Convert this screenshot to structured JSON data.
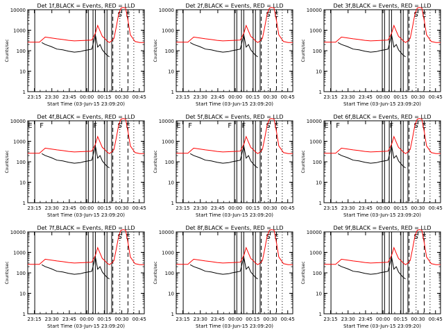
{
  "figure": {
    "panels": [
      {
        "title": "Det 1f,BLACK = Events, RED = LLD",
        "ylabel": "Counts/sec",
        "x_tick_labels": [
          "23:15",
          "23:30",
          "23:45",
          "00:00",
          "00:15",
          "00:30",
          "00:45"
        ],
        "y_tick_labels": [
          "1",
          "10",
          "100",
          "1000",
          "10000"
        ],
        "xlabel": "Start Time (03-Jun-15 23:09:20)",
        "marker_letters": [
          "S",
          "E"
        ]
      },
      {
        "title": "Det 2f,BLACK = Events, RED = LLD",
        "ylabel": "Counts/sec",
        "x_tick_labels": [
          "23:15",
          "23:30",
          "23:45",
          "00:00",
          "00:15",
          "00:30",
          "00:45"
        ],
        "y_tick_labels": [
          "1",
          "10",
          "100",
          "1000",
          "10000"
        ],
        "xlabel": "Start Time (03-Jun-15 23:09:20)",
        "marker_letters": [
          "S",
          "E"
        ]
      },
      {
        "title": "Det 3f,BLACK = Events, RED = LLD",
        "ylabel": "Counts/sec",
        "x_tick_labels": [
          "23:15",
          "23:30",
          "23:45",
          "00:00",
          "00:15",
          "00:30",
          "00:45"
        ],
        "y_tick_labels": [
          "1",
          "10",
          "100",
          "1000",
          "10000"
        ],
        "xlabel": "Start Time (03-Jun-15 23:09:20)",
        "marker_letters": [
          "S",
          "E"
        ]
      },
      {
        "title": "Det 4f,BLACK = Events, RED = LLD",
        "ylabel": "Counts/sec",
        "x_tick_labels": [
          "23:15",
          "23:30",
          "23:45",
          "00:00",
          "00:15",
          "00:30",
          "00:45"
        ],
        "y_tick_labels": [
          "1",
          "10",
          "100",
          "1000",
          "10000"
        ],
        "xlabel": "Start Time (03-Jun-15 23:09:20)",
        "marker_letters": [
          "E",
          "F",
          "F",
          "S",
          "E"
        ]
      },
      {
        "title": "Det 5f,BLACK = Events, RED = LLD",
        "ylabel": "Counts/sec",
        "x_tick_labels": [
          "23:15",
          "23:30",
          "23:45",
          "00:00",
          "00:15",
          "00:30",
          "00:45"
        ],
        "y_tick_labels": [
          "1",
          "10",
          "100",
          "1000",
          "10000"
        ],
        "xlabel": "Start Time (03-Jun-15 23:09:20)",
        "marker_letters": [
          "E",
          "F",
          "F",
          "F",
          "S",
          "E"
        ]
      },
      {
        "title": "Det 6f,BLACK = Events, RED = LLD",
        "ylabel": "Counts/sec",
        "x_tick_labels": [
          "23:15",
          "23:30",
          "23:45",
          "00:00",
          "00:15",
          "00:30",
          "00:45"
        ],
        "y_tick_labels": [
          "1",
          "10",
          "100",
          "1000",
          "10000"
        ],
        "xlabel": "Start Time (03-Jun-15 23:09:20)",
        "marker_letters": [
          "E",
          "F",
          "F",
          "S",
          "E"
        ]
      },
      {
        "title": "Det 7f,BLACK = Events, RED = LLD",
        "ylabel": "Counts/sec",
        "x_tick_labels": [
          "23:15",
          "23:30",
          "23:45",
          "00:00",
          "00:15",
          "00:30",
          "00:45"
        ],
        "y_tick_labels": [
          "1",
          "10",
          "100",
          "1000",
          "10000"
        ],
        "xlabel": "Start Time (03-Jun-15 23:09:20)",
        "marker_letters": [
          "S",
          "E"
        ]
      },
      {
        "title": "Det 8f,BLACK = Events, RED = LLD",
        "ylabel": "Counts/sec",
        "x_tick_labels": [
          "23:15",
          "23:30",
          "23:45",
          "00:00",
          "00:15",
          "00:30",
          "00:45"
        ],
        "y_tick_labels": [
          "1",
          "10",
          "100",
          "1000",
          "10000"
        ],
        "xlabel": "Start Time (03-Jun-15 23:09:20)",
        "marker_letters": [
          "S",
          "E"
        ]
      },
      {
        "title": "Det 9f,BLACK = Events, RED = LLD",
        "ylabel": "Counts/sec",
        "x_tick_labels": [
          "23:15",
          "23:30",
          "23:45",
          "00:00",
          "00:15",
          "00:30",
          "00:45"
        ],
        "y_tick_labels": [
          "1",
          "10",
          "100",
          "1000",
          "10000"
        ],
        "xlabel": "Start Time (03-Jun-15 23:09:20)",
        "marker_letters": [
          "S",
          "E"
        ]
      }
    ]
  },
  "chart_data": {
    "type": "line",
    "layout": "3x3 grid of panels",
    "x_range_minutes_from_23_09_20": [
      0,
      100
    ],
    "y_scale": "log",
    "ylim": [
      1,
      10000
    ],
    "colors": {
      "events": "#000000",
      "lld": "#ff0000",
      "axes": "#000000"
    },
    "dashed_marker_minutes": [
      73,
      86
    ],
    "dotted_marker_minutes": [
      79,
      91
    ],
    "solid_marker_minutes": [
      6,
      50,
      52,
      56,
      58,
      66,
      68,
      72
    ],
    "series": [
      {
        "name": "BLACK = Events",
        "x": [
          12,
          15,
          20,
          25,
          30,
          35,
          40,
          45,
          48,
          52,
          55,
          58,
          60,
          62,
          64,
          66,
          68,
          70
        ],
        "y": [
          250,
          200,
          160,
          120,
          110,
          95,
          85,
          90,
          100,
          110,
          120,
          600,
          150,
          200,
          110,
          80,
          60,
          50
        ]
      },
      {
        "name": "RED = LLD",
        "x": [
          0,
          5,
          10,
          15,
          20,
          25,
          30,
          35,
          40,
          45,
          50,
          55,
          58,
          60,
          62,
          64,
          66,
          68,
          70,
          72,
          74,
          76,
          78,
          80,
          82,
          84,
          86,
          88,
          92,
          96,
          100
        ],
        "y": [
          260,
          260,
          260,
          460,
          420,
          380,
          350,
          320,
          300,
          310,
          320,
          330,
          700,
          1700,
          900,
          500,
          400,
          300,
          250,
          300,
          400,
          1500,
          6000,
          12000,
          13000,
          12000,
          3000,
          600,
          280,
          250,
          250
        ]
      }
    ]
  }
}
